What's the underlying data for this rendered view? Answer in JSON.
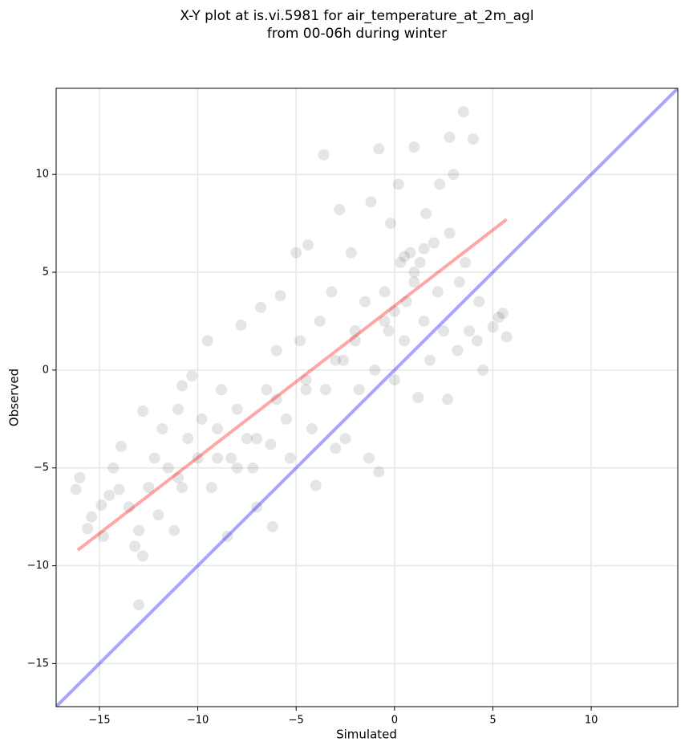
{
  "chart_data": {
    "type": "scatter",
    "title": [
      "X-Y plot at is.vi.5981 for air_temperature_at_2m_agl",
      "from 00-06h during winter"
    ],
    "xlabel": "Simulated",
    "ylabel": "Observed",
    "xlim": [
      -17.2,
      14.4
    ],
    "ylim": [
      -17.2,
      14.4
    ],
    "xticks": [
      {
        "value": -15,
        "label": "−15"
      },
      {
        "value": -10,
        "label": "−10"
      },
      {
        "value": -5,
        "label": "−5"
      },
      0,
      5,
      10
    ],
    "yticks": [
      {
        "value": -15,
        "label": "−15"
      },
      {
        "value": -10,
        "label": "−10"
      },
      {
        "value": -5,
        "label": "−5"
      },
      0,
      5,
      10
    ],
    "grid": true,
    "points": {
      "color": "#000000",
      "x": [
        -16.2,
        -16,
        -15.6,
        -15.4,
        -14.9,
        -14.8,
        -14.5,
        -14.3,
        -14,
        -13.9,
        -13.5,
        -13.2,
        -13,
        -12.8,
        -13,
        -12.8,
        -12.5,
        -12.2,
        -12,
        -11.8,
        -11.5,
        -11.2,
        -11,
        -10.8,
        -10.5,
        -10.3,
        -10,
        -9.8,
        -9.5,
        -9.3,
        -9,
        -8.8,
        -8.5,
        -8.3,
        -8,
        -7.8,
        -7.5,
        -7.2,
        -7,
        -6.8,
        -6.5,
        -6.3,
        -6.2,
        -6,
        -5.8,
        -5.5,
        -5.3,
        -5,
        -4.8,
        -4.5,
        -4.4,
        -4.2,
        -4,
        -3.8,
        -3.6,
        -3.5,
        -3.2,
        -3,
        -2.8,
        -2.6,
        -2.5,
        -2.2,
        -2,
        -1.8,
        -1.5,
        -1.3,
        -1.2,
        -1,
        -0.8,
        -0.8,
        -0.5,
        -0.3,
        -0.2,
        0,
        0,
        0.2,
        0.3,
        0.5,
        0.6,
        0.8,
        1,
        1,
        1.2,
        1.3,
        1.5,
        1.6,
        1.8,
        2,
        2.2,
        2.3,
        2.5,
        2.7,
        2.8,
        3,
        3.2,
        3.3,
        3.5,
        3.6,
        3.8,
        4,
        4.2,
        4.3,
        4.5,
        5,
        5.3,
        5.5,
        5.7,
        2.8,
        -10.8,
        -8,
        -6,
        -3,
        1,
        0.5,
        1.5,
        -0.5,
        -2,
        -4.5,
        -7,
        -9,
        -11
      ],
      "y": [
        -6.1,
        -5.5,
        -8.1,
        -7.5,
        -6.9,
        -8.5,
        -6.4,
        -5,
        -6.1,
        -3.9,
        -7,
        -9,
        -8.2,
        -9.5,
        -12,
        -2.1,
        -6,
        -4.5,
        -7.4,
        -3,
        -5,
        -8.2,
        -2,
        -6,
        -3.5,
        -0.3,
        -4.5,
        -2.5,
        1.5,
        -6,
        -3,
        -1,
        -8.5,
        -4.5,
        -2,
        2.3,
        -3.5,
        -5,
        -7,
        3.2,
        -1,
        -3.8,
        -8,
        1,
        3.8,
        -2.5,
        -4.5,
        6,
        1.5,
        -0.5,
        6.4,
        -3,
        -5.9,
        2.5,
        11,
        -1,
        4,
        -4,
        8.2,
        0.5,
        -3.5,
        6,
        2,
        -1,
        3.5,
        -4.5,
        8.6,
        0,
        -5.2,
        11.3,
        4,
        2,
        7.5,
        3,
        -0.5,
        9.5,
        5.5,
        1.5,
        3.5,
        6,
        4.5,
        11.4,
        -1.4,
        5.5,
        2.5,
        8,
        0.5,
        6.5,
        4,
        9.5,
        2,
        -1.5,
        7,
        10,
        1,
        4.5,
        13.2,
        5.5,
        2,
        11.8,
        1.5,
        3.5,
        0,
        2.2,
        2.7,
        2.9,
        1.7,
        11.9,
        -0.8,
        -5,
        -1.5,
        0.5,
        5,
        5.8,
        6.2,
        2.5,
        1.5,
        -1,
        -3.5,
        -4.5,
        -5.5
      ]
    },
    "lines": [
      {
        "color": "#ff0000",
        "x": [
          -16.1,
          5.7
        ],
        "y": [
          -9.2,
          7.7
        ]
      },
      {
        "color": "#0000ff",
        "x": [
          -17.2,
          14.4
        ],
        "y": [
          -17.2,
          14.4
        ]
      }
    ]
  }
}
